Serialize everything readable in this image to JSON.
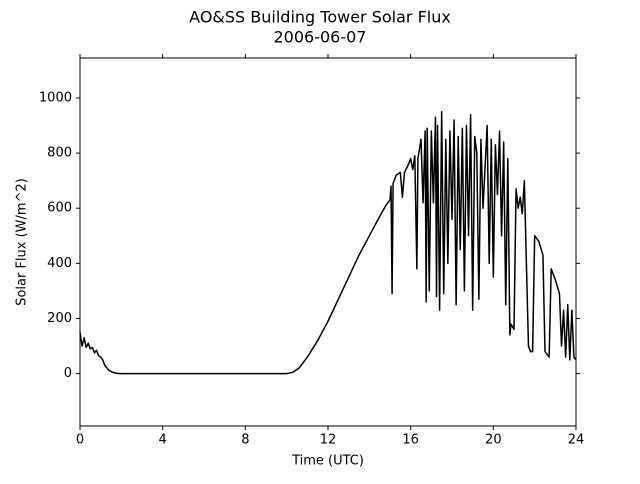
{
  "chart_data": {
    "type": "line",
    "title": "AO&SS Building Tower Solar Flux",
    "subtitle": "2006-06-07",
    "x_label": "Time (UTC)",
    "y_label": "Solar Flux (W/m^2)",
    "xlim": [
      0,
      24
    ],
    "xticks": [
      0,
      4,
      8,
      12,
      16,
      20,
      24
    ],
    "ylim": [
      -190,
      1145
    ],
    "yticks": [
      0,
      200,
      400,
      600,
      800,
      1000
    ],
    "series": [
      {
        "color": "#000000",
        "x": [
          0,
          0.1,
          0.2,
          0.3,
          0.4,
          0.5,
          0.6,
          0.7,
          0.8,
          0.9,
          1.0,
          1.1,
          1.2,
          1.4,
          1.6,
          1.8,
          2,
          4,
          8,
          10,
          10.3,
          10.6,
          11,
          11.5,
          12,
          12.5,
          13,
          13.5,
          14,
          14.5,
          14.8,
          15,
          15.05,
          15.1,
          15.15,
          15.3,
          15.5,
          15.6,
          15.7,
          15.9,
          16.0,
          16.1,
          16.2,
          16.3,
          16.35,
          16.5,
          16.6,
          16.7,
          16.75,
          16.8,
          16.9,
          17.0,
          17.1,
          17.2,
          17.25,
          17.3,
          17.4,
          17.5,
          17.6,
          17.7,
          17.8,
          17.9,
          18.0,
          18.1,
          18.2,
          18.3,
          18.4,
          18.5,
          18.6,
          18.7,
          18.8,
          18.9,
          19.0,
          19.1,
          19.2,
          19.3,
          19.4,
          19.5,
          19.7,
          19.8,
          19.9,
          20.0,
          20.1,
          20.2,
          20.3,
          20.4,
          20.5,
          20.6,
          20.7,
          20.8,
          20.85,
          21.0,
          21.1,
          21.2,
          21.3,
          21.4,
          21.5,
          21.7,
          21.8,
          21.9,
          22.0,
          22.2,
          22.4,
          22.5,
          22.6,
          22.7,
          22.8,
          23.0,
          23.2,
          23.3,
          23.4,
          23.5,
          23.6,
          23.7,
          23.8,
          23.9,
          24
        ],
        "values": [
          150,
          100,
          130,
          95,
          110,
          90,
          95,
          75,
          85,
          65,
          60,
          50,
          30,
          12,
          4,
          1,
          0,
          0,
          0,
          0,
          5,
          20,
          60,
          120,
          190,
          270,
          350,
          430,
          500,
          570,
          610,
          630,
          680,
          290,
          690,
          720,
          730,
          640,
          730,
          760,
          780,
          740,
          790,
          380,
          780,
          850,
          620,
          880,
          260,
          890,
          300,
          880,
          620,
          930,
          280,
          900,
          230,
          950,
          290,
          850,
          400,
          880,
          560,
          920,
          250,
          860,
          450,
          890,
          300,
          900,
          500,
          940,
          230,
          860,
          800,
          270,
          850,
          600,
          900,
          400,
          850,
          350,
          830,
          650,
          880,
          500,
          840,
          250,
          780,
          140,
          180,
          160,
          670,
          600,
          640,
          580,
          700,
          100,
          80,
          80,
          500,
          480,
          430,
          80,
          70,
          60,
          380,
          340,
          290,
          100,
          230,
          60,
          250,
          50,
          230,
          60,
          50
        ]
      }
    ]
  }
}
